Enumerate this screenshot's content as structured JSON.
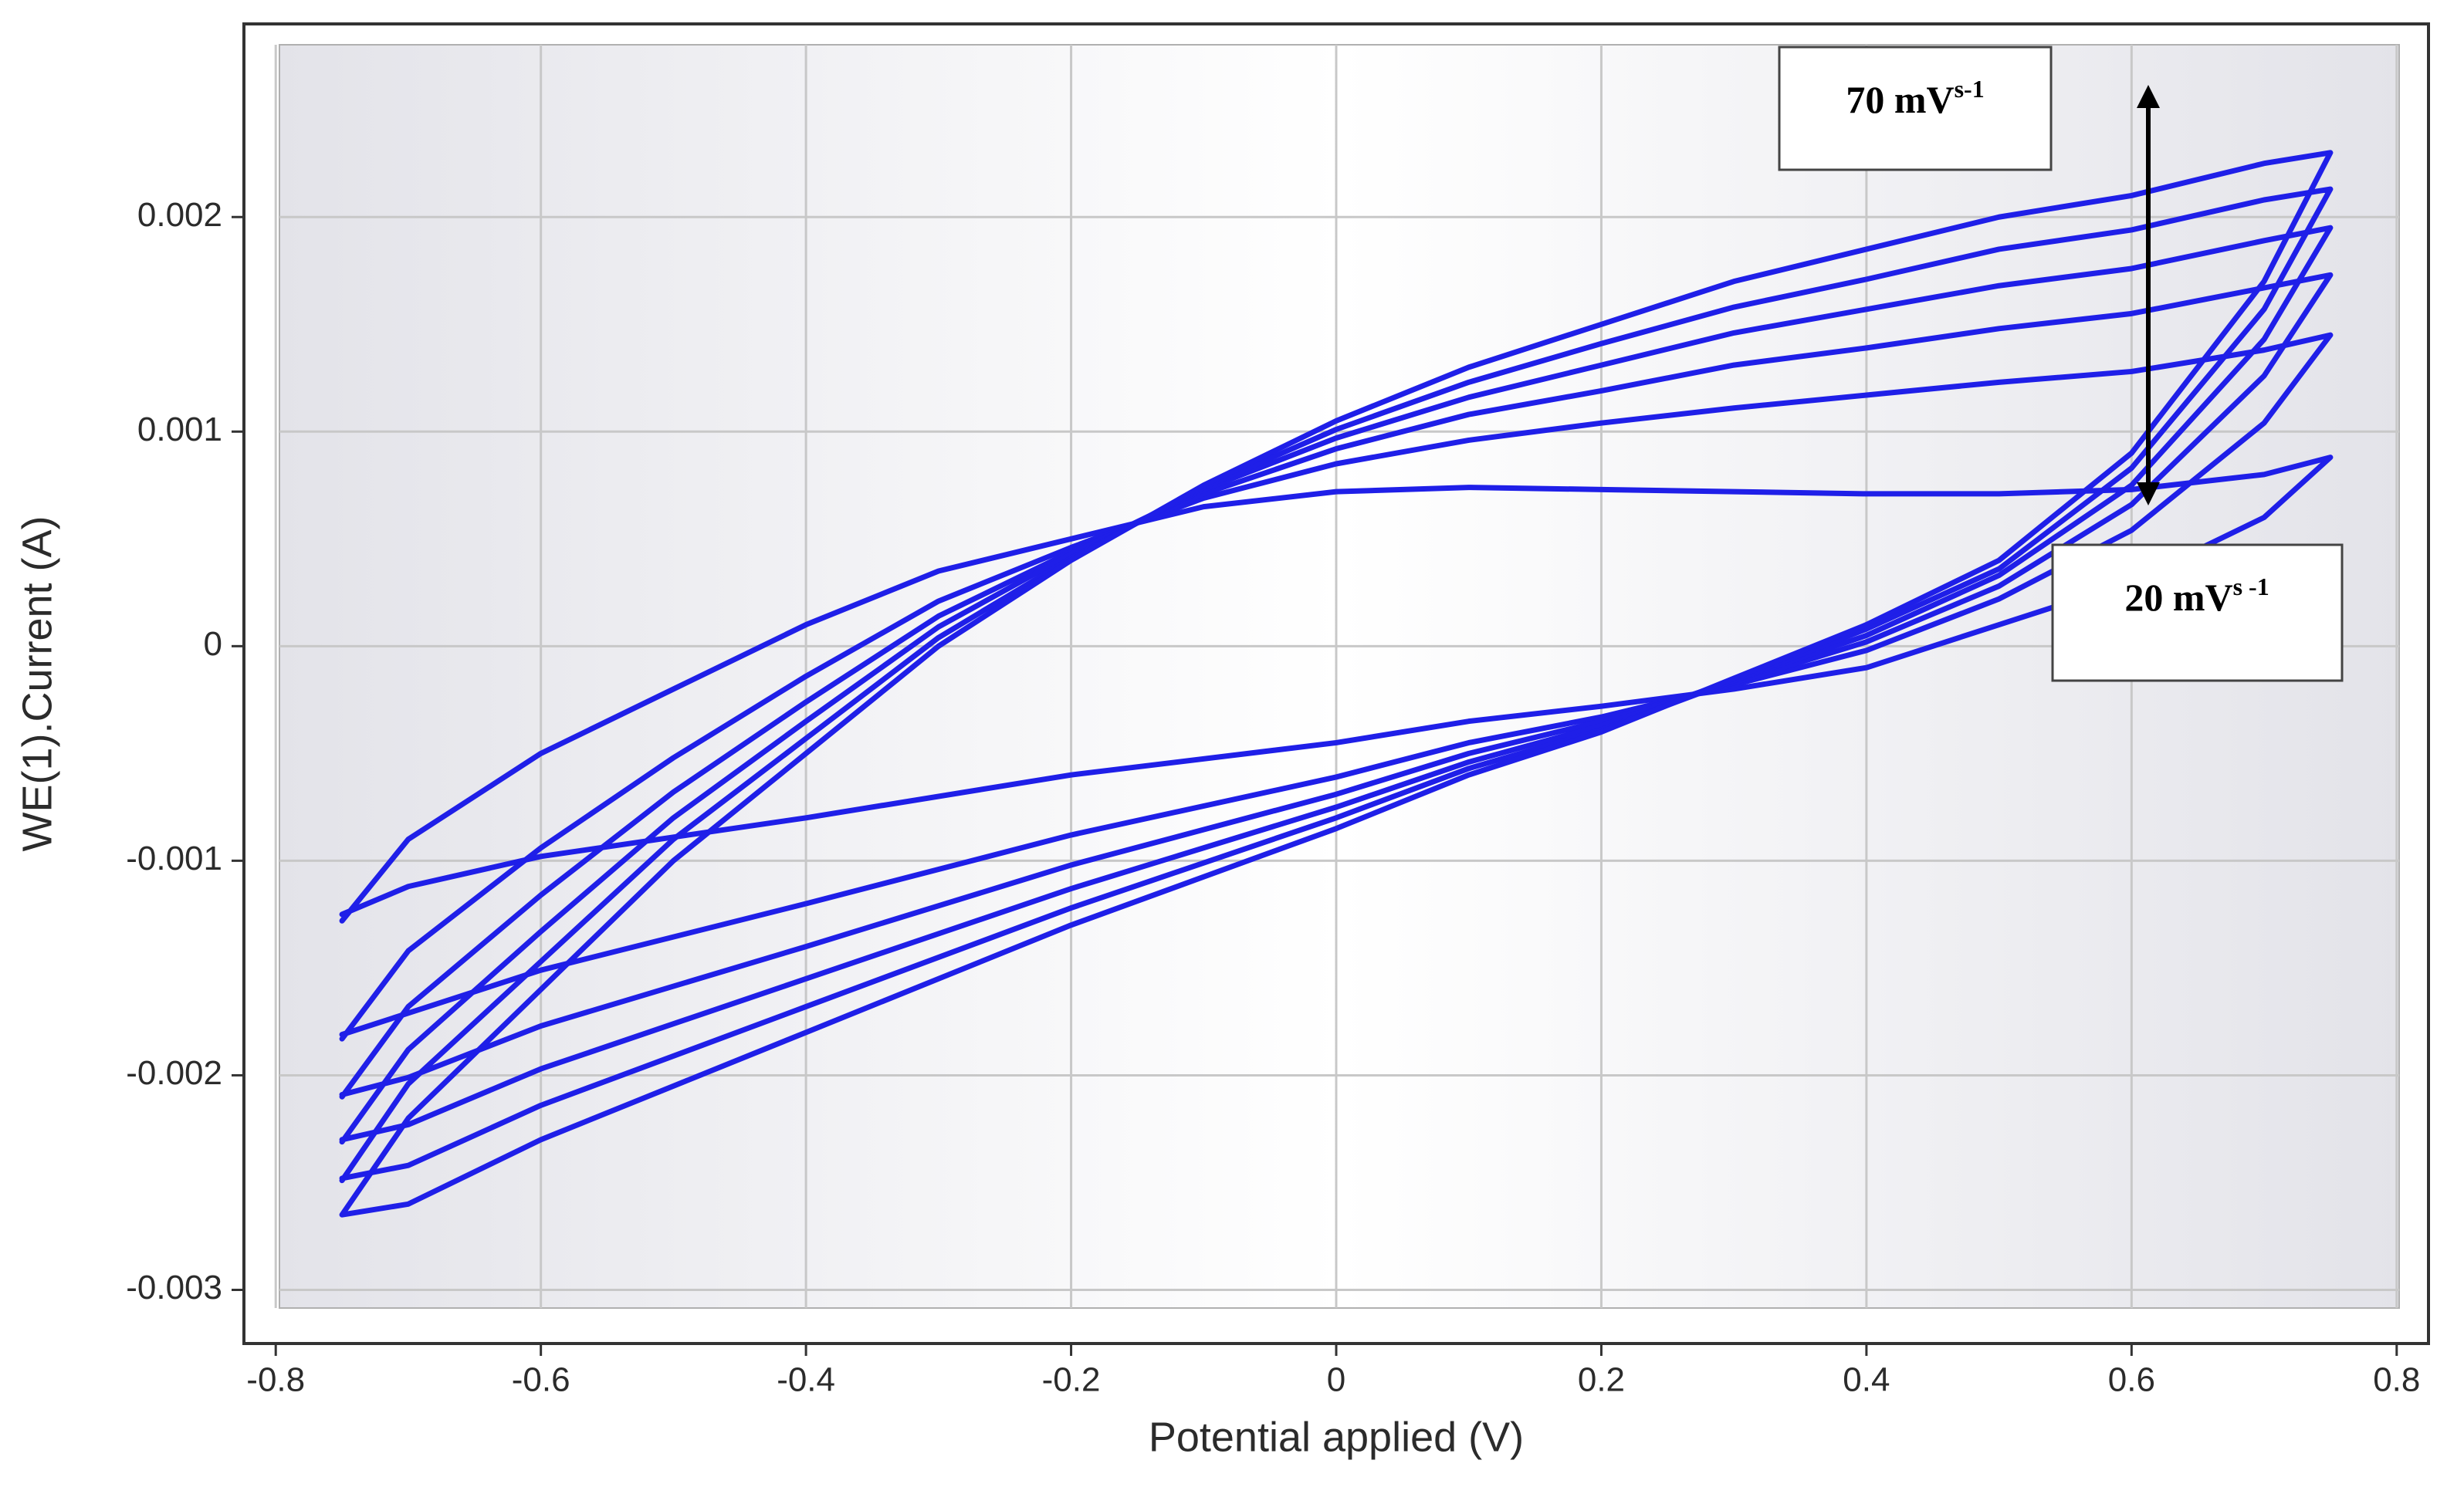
{
  "chart_data": {
    "type": "line",
    "x_label": "Potential applied (V)",
    "y_label": "WE(1).Current (A)",
    "xlim": [
      -0.824,
      0.824
    ],
    "ylim": [
      -0.00325,
      0.0029
    ],
    "xticks": [
      -0.8,
      -0.6,
      -0.4,
      -0.2,
      0,
      0.2,
      0.4,
      0.6,
      0.8
    ],
    "yticks": [
      -0.003,
      -0.002,
      -0.001,
      0,
      0.001,
      0.002
    ],
    "grid": true,
    "x": [
      -0.75,
      -0.7,
      -0.6,
      -0.5,
      -0.4,
      -0.3,
      -0.2,
      -0.1,
      0,
      0.1,
      0.2,
      0.3,
      0.4,
      0.5,
      0.6,
      0.7,
      0.75,
      0.7,
      0.6,
      0.5,
      0.4,
      0.3,
      0.2,
      0.1,
      0,
      -0.2,
      -0.4,
      -0.6,
      -0.7,
      -0.75
    ],
    "series": [
      {
        "color": "#1f1fe8",
        "values": [
          -0.00128,
          -0.0009,
          -0.0005,
          -0.0002,
          0.0001,
          0.00035,
          0.0005,
          0.00065,
          0.00072,
          0.00074,
          0.00073,
          0.00072,
          0.00071,
          0.00071,
          0.00073,
          0.0008,
          0.00088,
          0.0006,
          0.0003,
          0.0001,
          -0.0001,
          -0.0002,
          -0.00028,
          -0.00035,
          -0.00045,
          -0.0006,
          -0.0008,
          -0.00098,
          -0.00112,
          -0.00125
        ]
      },
      {
        "color": "#1f1fe8",
        "values": [
          -0.00183,
          -0.00142,
          -0.00094,
          -0.00052,
          -0.00014,
          0.00021,
          0.00046,
          0.00069,
          0.00085,
          0.00096,
          0.00104,
          0.00111,
          0.00117,
          0.00123,
          0.00128,
          0.00138,
          0.00145,
          0.00104,
          0.00054,
          0.00022,
          -2e-05,
          -0.00018,
          -0.00033,
          -0.00045,
          -0.00061,
          -0.00088,
          -0.0012,
          -0.00151,
          -0.00171,
          -0.00181
        ]
      },
      {
        "color": "#1f1fe8",
        "values": [
          -0.0021,
          -0.00168,
          -0.00116,
          -0.00068,
          -0.00026,
          0.00014,
          0.00044,
          0.00071,
          0.00092,
          0.00108,
          0.00119,
          0.00131,
          0.00139,
          0.00148,
          0.00155,
          0.00167,
          0.00173,
          0.00126,
          0.00066,
          0.00028,
          2e-05,
          -0.00017,
          -0.00035,
          -0.0005,
          -0.00069,
          -0.00102,
          -0.0014,
          -0.00177,
          -0.00201,
          -0.00209
        ]
      },
      {
        "color": "#1f1fe8",
        "values": [
          -0.00231,
          -0.00188,
          -0.00133,
          -0.0008,
          -0.00035,
          9e-05,
          0.00043,
          0.00073,
          0.00097,
          0.00116,
          0.00131,
          0.00146,
          0.00157,
          0.00168,
          0.00176,
          0.00189,
          0.00195,
          0.00143,
          0.00075,
          0.00033,
          5e-05,
          -0.00016,
          -0.00037,
          -0.00054,
          -0.00075,
          -0.00113,
          -0.00155,
          -0.00197,
          -0.00223,
          -0.0023
        ]
      },
      {
        "color": "#1f1fe8",
        "values": [
          -0.00249,
          -0.00204,
          -0.00147,
          -0.0009,
          -0.00043,
          4e-05,
          0.00041,
          0.00074,
          0.00101,
          0.00123,
          0.00141,
          0.00158,
          0.00171,
          0.00185,
          0.00194,
          0.00208,
          0.00213,
          0.00157,
          0.00083,
          0.00036,
          8e-05,
          -0.00016,
          -0.00039,
          -0.00057,
          -0.0008,
          -0.00122,
          -0.00168,
          -0.00214,
          -0.00242,
          -0.00248
        ]
      },
      {
        "color": "#1f1fe8",
        "values": [
          -0.00265,
          -0.0022,
          -0.0016,
          -0.001,
          -0.0005,
          0,
          0.0004,
          0.00075,
          0.00105,
          0.0013,
          0.0015,
          0.0017,
          0.00185,
          0.002,
          0.0021,
          0.00225,
          0.0023,
          0.0017,
          0.0009,
          0.0004,
          0.0001,
          -0.00015,
          -0.0004,
          -0.0006,
          -0.00085,
          -0.0013,
          -0.0018,
          -0.0023,
          -0.0026,
          -0.00265
        ]
      }
    ],
    "annotations": [
      {
        "text": "70 mV",
        "sup": "s-1"
      },
      {
        "text": "20 mV",
        "sup": "s -1"
      }
    ]
  }
}
